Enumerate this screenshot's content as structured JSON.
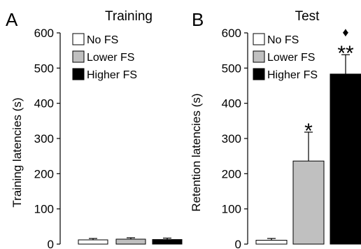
{
  "chart_data": [
    {
      "panel_label": "A",
      "type": "bar",
      "title": "Training",
      "ylabel": "Training latencies (s)",
      "ylim": [
        0,
        600
      ],
      "yticks": [
        0,
        100,
        200,
        300,
        400,
        500,
        600
      ],
      "grid": false,
      "legend_position": "top-left",
      "categories": [
        "No FS",
        "Lower FS",
        "Higher FS"
      ],
      "values": [
        12,
        14,
        13
      ],
      "errors": [
        4,
        4,
        4
      ],
      "colors": [
        "#ffffff",
        "#c0c0c0",
        "#000000"
      ],
      "annotations": [
        "",
        "",
        ""
      ]
    },
    {
      "panel_label": "B",
      "type": "bar",
      "title": "Test",
      "ylabel": "Retention latencies (s)",
      "ylim": [
        0,
        600
      ],
      "yticks": [
        0,
        100,
        200,
        300,
        400,
        500,
        600
      ],
      "grid": false,
      "legend_position": "top-left",
      "categories": [
        "No FS",
        "Lower FS",
        "Higher FS"
      ],
      "values": [
        11,
        236,
        483
      ],
      "errors": [
        5,
        82,
        55
      ],
      "colors": [
        "#ffffff",
        "#c0c0c0",
        "#000000"
      ],
      "annotations": [
        "",
        "*",
        "♦\n**"
      ]
    }
  ]
}
